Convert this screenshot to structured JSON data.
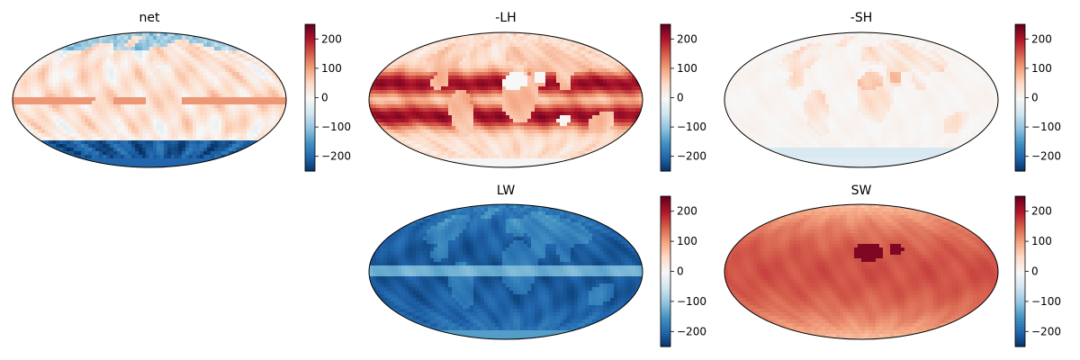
{
  "figure": {
    "panels": [
      {
        "id": "net",
        "title": "net",
        "field": "net"
      },
      {
        "id": "lh",
        "title": "-LH",
        "field": "lh"
      },
      {
        "id": "sh",
        "title": "-SH",
        "field": "sh"
      },
      {
        "id": "lw",
        "title": "LW",
        "field": "lw"
      },
      {
        "id": "sw",
        "title": "SW",
        "field": "sw"
      }
    ],
    "colorbar": {
      "colormap": "RdBu_r",
      "range": [
        -250,
        250
      ],
      "ticks": [
        -200,
        -100,
        0,
        100,
        200
      ],
      "tick_labels": [
        "−200",
        "−100",
        "0",
        "100",
        "200"
      ]
    },
    "projection": "mollweide",
    "colors": {
      "cmap_stops": [
        "#053061",
        "#2166ac",
        "#4393c3",
        "#92c5de",
        "#d1e5f0",
        "#f7f7f7",
        "#fddbc7",
        "#f4a582",
        "#d6604d",
        "#b2182b",
        "#67001f"
      ]
    }
  },
  "chart_data": {
    "type": "heatmap",
    "projection": "mollweide",
    "colormap": "RdBu_r",
    "clim": [
      -250,
      250
    ],
    "panels": [
      {
        "title": "net",
        "typical_range": [
          -250,
          250
        ],
        "approx_mean": 0
      },
      {
        "title": "-LH",
        "typical_range": [
          0,
          250
        ],
        "approx_mean": 120
      },
      {
        "title": "-SH",
        "typical_range": [
          -60,
          100
        ],
        "approx_mean": 10
      },
      {
        "title": "LW",
        "typical_range": [
          -250,
          -40
        ],
        "approx_mean": -180
      },
      {
        "title": "SW",
        "typical_range": [
          60,
          250
        ],
        "approx_mean": 100
      }
    ]
  }
}
